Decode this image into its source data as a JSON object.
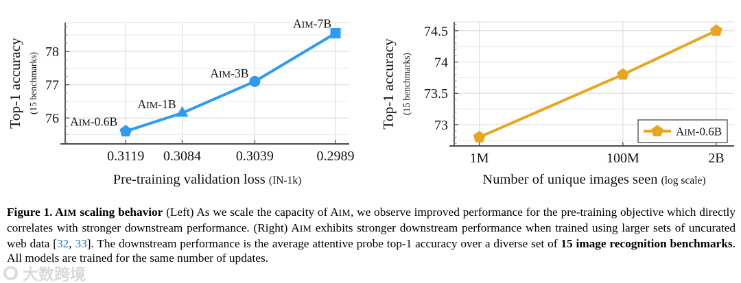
{
  "colors": {
    "line_blue": "#2D9BF0",
    "line_orange": "#E8A51E",
    "citation_link": "#2273C8",
    "grid": "#DCDCDC",
    "grid_minor": "#E7E7E7",
    "axis": "#4A4A4A",
    "text": "#111111"
  },
  "watermark": {
    "text": "大数跨境"
  },
  "caption": {
    "segments": [
      {
        "t": "Figure 1. ",
        "s": "bold"
      },
      {
        "t": "AIM",
        "s": "bold-sc"
      },
      {
        "t": " scaling behavior",
        "s": "bold"
      },
      {
        "t": " (Left) As we scale the capacity of ",
        "s": "normal"
      },
      {
        "t": "AIM",
        "s": "sc"
      },
      {
        "t": ", we observe improved performance for the pre-training objective which directly correlates with stronger downstream performance.  (Right) ",
        "s": "normal"
      },
      {
        "t": "AIM",
        "s": "sc"
      },
      {
        "t": " exhibits stronger downstream performance when trained using larger sets of uncurated web data [",
        "s": "normal"
      },
      {
        "t": "32",
        "s": "link"
      },
      {
        "t": ", ",
        "s": "normal"
      },
      {
        "t": "33",
        "s": "link"
      },
      {
        "t": "]. The downstream performance is the average attentive probe top-1 accuracy over a diverse set of ",
        "s": "normal"
      },
      {
        "t": "15 image recognition benchmarks",
        "s": "bold"
      },
      {
        "t": ". All models are trained for the same number of updates.",
        "s": "normal"
      }
    ]
  },
  "chart_data": [
    {
      "type": "line",
      "ylabel": "Top-1 accuracy",
      "ylabel_sub": "(15 benchmarks)",
      "xlabel": "Pre-training validation loss",
      "xlabel_sub": "(IN-1k)",
      "x_axis": "linear-reversed",
      "x_ticks": [
        "0.3119",
        "0.3084",
        "0.3039",
        "0.2989"
      ],
      "x_tick_values": [
        0.3119,
        0.3084,
        0.3039,
        0.2989
      ],
      "y_ticks": [
        "76",
        "77",
        "78"
      ],
      "ylim": [
        75.2,
        78.9
      ],
      "grid": true,
      "series": [
        {
          "name": "AIM",
          "color_key": "line_blue",
          "points": [
            {
              "label": "AIM-0.6B",
              "marker": "pentagon",
              "x": 0.3119,
              "y": 75.6
            },
            {
              "label": "AIM-1B",
              "marker": "triangle",
              "x": 0.3084,
              "y": 76.15
            },
            {
              "label": "AIM-3B",
              "marker": "circle",
              "x": 0.3039,
              "y": 77.1
            },
            {
              "label": "AIM-7B",
              "marker": "square",
              "x": 0.2989,
              "y": 78.55
            }
          ]
        }
      ]
    },
    {
      "type": "line",
      "ylabel": "Top-1 accuracy",
      "ylabel_sub": "(15 benchmarks)",
      "xlabel": "Number of unique images seen",
      "xlabel_sub": "(log scale)",
      "x_axis": "log",
      "x_ticks": [
        "1M",
        "100M",
        "2B"
      ],
      "x_tick_values": [
        1000000,
        100000000,
        2000000000
      ],
      "y_ticks": [
        "73",
        "73.5",
        "74",
        "74.5"
      ],
      "ylim": [
        72.65,
        74.65
      ],
      "grid": true,
      "legend": {
        "label": "AIM-0.6B",
        "position": "lower right"
      },
      "series": [
        {
          "name": "AIM-0.6B",
          "color_key": "line_orange",
          "marker": "pentagon",
          "points": [
            {
              "x": 1000000,
              "y": 72.8
            },
            {
              "x": 100000000,
              "y": 73.8
            },
            {
              "x": 2000000000,
              "y": 74.5
            }
          ]
        }
      ]
    }
  ]
}
